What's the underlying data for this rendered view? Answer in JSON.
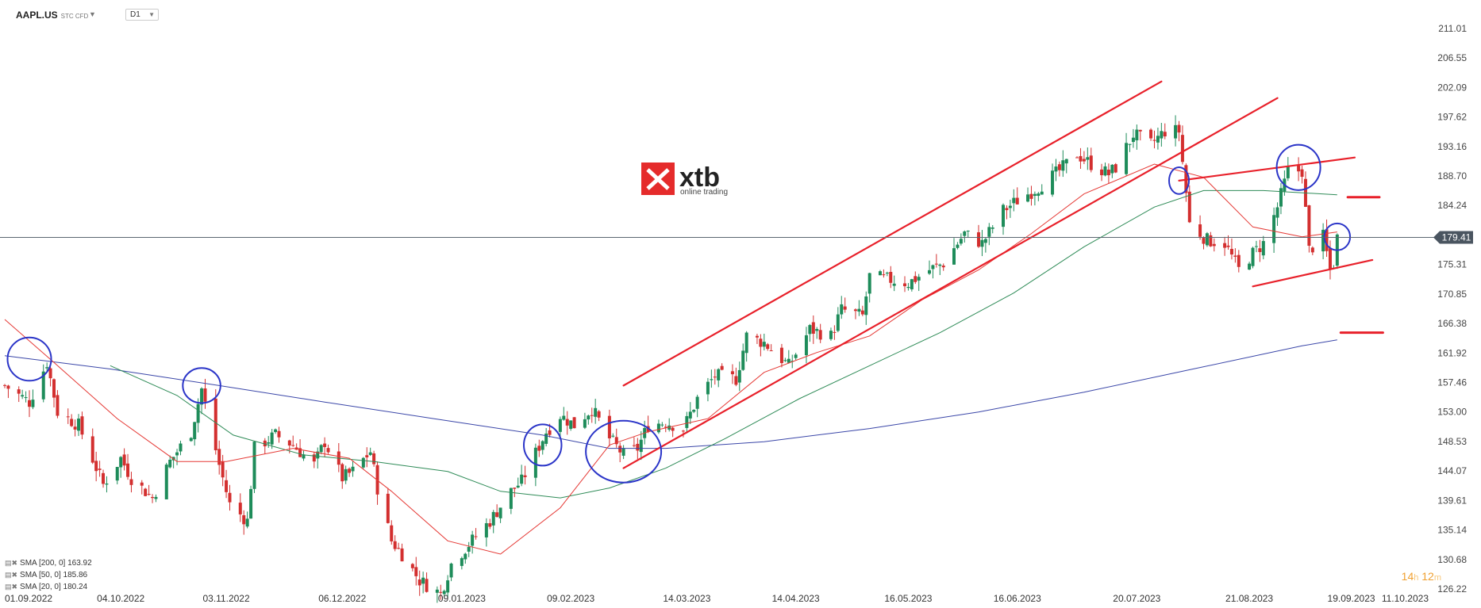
{
  "header": {
    "symbol": "AAPL.US",
    "symbol_type": "STC CFD",
    "timeframe": "D1"
  },
  "logo": {
    "name": "xtb",
    "tagline": "online trading"
  },
  "timer": {
    "hours": "14",
    "h_unit": "h",
    "minutes": "12",
    "m_unit": "m"
  },
  "indicators": [
    {
      "label": "SMA [200,  0]  163.92",
      "color": "#3a46a8"
    },
    {
      "label": "SMA [50,  0]  185.86",
      "color": "#2e8b57"
    },
    {
      "label": "SMA [20,  0]  180.24",
      "color": "#e53935"
    }
  ],
  "colors": {
    "up": "#1e8c5a",
    "down": "#d32f2f",
    "sma200": "#3a46a8",
    "sma50": "#2e8b57",
    "sma20": "#e53935",
    "annotation_line": "#e8202a",
    "annotation_circle": "#2b35c8",
    "price_tag": "#4a5560"
  },
  "chart_data": {
    "type": "candlestick",
    "ylim": [
      126.22,
      212.5
    ],
    "y_ticks": [
      211.01,
      206.55,
      202.09,
      197.62,
      193.16,
      188.7,
      184.24,
      179.78,
      175.31,
      170.85,
      166.38,
      161.92,
      157.46,
      153.0,
      148.53,
      144.07,
      139.61,
      135.14,
      130.68,
      126.22
    ],
    "y_tick_labels": [
      "211.01",
      "206.55",
      "202.09",
      "197.62",
      "193.16",
      "188.70",
      "184.24",
      "",
      "175.31",
      "170.85",
      "166.38",
      "161.92",
      "157.46",
      "153.00",
      "148.53",
      "144.07",
      "139.61",
      "135.14",
      "130.68",
      "126.22"
    ],
    "x_range": [
      "2022-09-01",
      "2023-10-11"
    ],
    "x_ticks": [
      "01.09.2022",
      "04.10.2022",
      "03.11.2022",
      "06.12.2022",
      "09.01.2023",
      "09.02.2023",
      "14.03.2023",
      "14.04.2023",
      "16.05.2023",
      "16.06.2023",
      "20.07.2023",
      "21.08.2023",
      "19.09.2023",
      "11.10.2023"
    ],
    "current_price": 179.41,
    "price_path": [
      [
        "2022-09-01",
        157.0
      ],
      [
        "2022-09-08",
        154.5
      ],
      [
        "2022-09-13",
        160.5
      ],
      [
        "2022-09-16",
        153.0
      ],
      [
        "2022-09-22",
        151.0
      ],
      [
        "2022-09-29",
        142.0
      ],
      [
        "2022-10-04",
        146.0
      ],
      [
        "2022-10-07",
        143.0
      ],
      [
        "2022-10-13",
        140.0
      ],
      [
        "2022-10-18",
        145.5
      ],
      [
        "2022-10-24",
        150.0
      ],
      [
        "2022-10-27",
        156.5
      ],
      [
        "2022-11-01",
        145.0
      ],
      [
        "2022-11-04",
        139.0
      ],
      [
        "2022-11-09",
        136.5
      ],
      [
        "2022-11-11",
        147.5
      ],
      [
        "2022-11-17",
        149.5
      ],
      [
        "2022-11-22",
        148.0
      ],
      [
        "2022-11-28",
        145.0
      ],
      [
        "2022-12-01",
        148.5
      ],
      [
        "2022-12-06",
        143.0
      ],
      [
        "2022-12-09",
        144.0
      ],
      [
        "2022-12-14",
        147.0
      ],
      [
        "2022-12-16",
        141.5
      ],
      [
        "2022-12-20",
        133.5
      ],
      [
        "2022-12-23",
        131.5
      ],
      [
        "2022-12-28",
        127.5
      ],
      [
        "2023-01-03",
        125.5
      ],
      [
        "2023-01-06",
        130.0
      ],
      [
        "2023-01-11",
        133.0
      ],
      [
        "2023-01-17",
        136.5
      ],
      [
        "2023-01-23",
        141.0
      ],
      [
        "2023-01-26",
        142.5
      ],
      [
        "2023-02-02",
        150.0
      ],
      [
        "2023-02-06",
        152.5
      ],
      [
        "2023-02-10",
        151.0
      ],
      [
        "2023-02-15",
        153.5
      ],
      [
        "2023-02-20",
        149.0
      ],
      [
        "2023-02-24",
        146.5
      ],
      [
        "2023-02-28",
        147.5
      ],
      [
        "2023-03-03",
        151.0
      ],
      [
        "2023-03-08",
        151.5
      ],
      [
        "2023-03-13",
        150.5
      ],
      [
        "2023-03-17",
        155.0
      ],
      [
        "2023-03-22",
        158.5
      ],
      [
        "2023-03-28",
        158.0
      ],
      [
        "2023-03-31",
        164.5
      ],
      [
        "2023-04-05",
        163.5
      ],
      [
        "2023-04-12",
        160.0
      ],
      [
        "2023-04-18",
        165.5
      ],
      [
        "2023-04-24",
        164.5
      ],
      [
        "2023-04-27",
        168.5
      ],
      [
        "2023-05-03",
        167.5
      ],
      [
        "2023-05-05",
        173.5
      ],
      [
        "2023-05-11",
        173.0
      ],
      [
        "2023-05-16",
        172.5
      ],
      [
        "2023-05-22",
        174.5
      ],
      [
        "2023-05-26",
        175.5
      ],
      [
        "2023-06-01",
        180.0
      ],
      [
        "2023-06-06",
        178.5
      ],
      [
        "2023-06-12",
        183.5
      ],
      [
        "2023-06-16",
        185.0
      ],
      [
        "2023-06-22",
        187.0
      ],
      [
        "2023-06-28",
        189.5
      ],
      [
        "2023-07-03",
        192.0
      ],
      [
        "2023-07-07",
        190.5
      ],
      [
        "2023-07-12",
        189.0
      ],
      [
        "2023-07-14",
        190.0
      ],
      [
        "2023-07-19",
        195.0
      ],
      [
        "2023-07-24",
        193.5
      ],
      [
        "2023-07-28",
        195.5
      ],
      [
        "2023-08-01",
        195.5
      ],
      [
        "2023-08-04",
        181.5
      ],
      [
        "2023-08-09",
        179.0
      ],
      [
        "2023-08-14",
        178.5
      ],
      [
        "2023-08-18",
        174.5
      ],
      [
        "2023-08-22",
        177.0
      ],
      [
        "2023-08-25",
        178.5
      ],
      [
        "2023-08-29",
        184.0
      ],
      [
        "2023-09-01",
        189.5
      ],
      [
        "2023-09-05",
        189.5
      ],
      [
        "2023-09-07",
        177.5
      ],
      [
        "2023-09-11",
        179.5
      ],
      [
        "2023-09-13",
        174.5
      ],
      [
        "2023-09-14",
        175.5
      ],
      [
        "2023-09-15",
        179.41
      ]
    ],
    "sma20_path": [
      [
        "2022-09-01",
        167.0
      ],
      [
        "2022-09-15",
        160.5
      ],
      [
        "2022-10-03",
        152.0
      ],
      [
        "2022-10-20",
        145.5
      ],
      [
        "2022-11-03",
        145.5
      ],
      [
        "2022-11-22",
        147.5
      ],
      [
        "2022-12-08",
        146.0
      ],
      [
        "2022-12-20",
        141.0
      ],
      [
        "2023-01-05",
        133.5
      ],
      [
        "2023-01-20",
        131.5
      ],
      [
        "2023-02-06",
        138.5
      ],
      [
        "2023-02-20",
        148.0
      ],
      [
        "2023-03-03",
        150.0
      ],
      [
        "2023-03-20",
        152.0
      ],
      [
        "2023-04-05",
        159.0
      ],
      [
        "2023-04-20",
        162.0
      ],
      [
        "2023-05-05",
        164.5
      ],
      [
        "2023-05-20",
        170.0
      ],
      [
        "2023-06-05",
        174.5
      ],
      [
        "2023-06-20",
        180.0
      ],
      [
        "2023-07-05",
        186.0
      ],
      [
        "2023-07-25",
        190.5
      ],
      [
        "2023-08-08",
        188.5
      ],
      [
        "2023-08-22",
        181.0
      ],
      [
        "2023-09-05",
        179.5
      ],
      [
        "2023-09-15",
        180.24
      ]
    ],
    "sma50_path": [
      [
        "2022-10-01",
        160.0
      ],
      [
        "2022-10-20",
        155.5
      ],
      [
        "2022-11-05",
        149.5
      ],
      [
        "2022-11-25",
        146.5
      ],
      [
        "2022-12-15",
        145.5
      ],
      [
        "2023-01-05",
        144.0
      ],
      [
        "2023-01-20",
        141.0
      ],
      [
        "2023-02-06",
        140.0
      ],
      [
        "2023-02-20",
        141.5
      ],
      [
        "2023-03-08",
        144.5
      ],
      [
        "2023-03-25",
        149.0
      ],
      [
        "2023-04-15",
        155.0
      ],
      [
        "2023-05-05",
        160.0
      ],
      [
        "2023-05-25",
        165.0
      ],
      [
        "2023-06-15",
        171.0
      ],
      [
        "2023-07-05",
        178.0
      ],
      [
        "2023-07-25",
        184.0
      ],
      [
        "2023-08-08",
        186.5
      ],
      [
        "2023-08-25",
        186.5
      ],
      [
        "2023-09-15",
        185.86
      ]
    ],
    "sma200_path": [
      [
        "2022-09-01",
        161.5
      ],
      [
        "2022-10-01",
        159.5
      ],
      [
        "2022-11-01",
        157.0
      ],
      [
        "2022-12-01",
        154.5
      ],
      [
        "2023-01-01",
        152.0
      ],
      [
        "2023-02-01",
        149.5
      ],
      [
        "2023-02-20",
        147.5
      ],
      [
        "2023-03-08",
        147.5
      ],
      [
        "2023-04-05",
        148.5
      ],
      [
        "2023-05-05",
        150.5
      ],
      [
        "2023-06-05",
        153.0
      ],
      [
        "2023-07-05",
        156.0
      ],
      [
        "2023-08-05",
        159.5
      ],
      [
        "2023-09-05",
        163.0
      ],
      [
        "2023-09-15",
        163.92
      ]
    ],
    "annotations": {
      "channel_upper": [
        [
          "2023-02-24",
          157.0
        ],
        [
          "2023-07-27",
          203.0
        ]
      ],
      "channel_lower": [
        [
          "2023-02-24",
          144.5
        ],
        [
          "2023-08-29",
          200.5
        ]
      ],
      "wedge_upper": [
        [
          "2023-08-01",
          188.0
        ],
        [
          "2023-09-20",
          191.5
        ]
      ],
      "wedge_lower": [
        [
          "2023-08-22",
          172.0
        ],
        [
          "2023-09-25",
          176.0
        ]
      ],
      "level_upper": [
        [
          "2023-09-18",
          185.5
        ],
        [
          "2023-09-27",
          185.5
        ]
      ],
      "level_lower": [
        [
          "2023-09-16",
          165.0
        ],
        [
          "2023-09-28",
          165.0
        ]
      ],
      "circles": [
        [
          [
            "2022-09-08",
            161.0
          ],
          [
            22,
            21
          ]
        ],
        [
          [
            "2022-10-27",
            157.0
          ],
          [
            19,
            17
          ]
        ],
        [
          [
            "2023-02-01",
            148.0
          ],
          [
            19,
            20
          ]
        ],
        [
          [
            "2023-02-24",
            147.0
          ],
          [
            38,
            30
          ]
        ],
        [
          [
            "2023-08-01",
            188.0
          ],
          [
            10,
            13
          ]
        ],
        [
          [
            "2023-09-04",
            190.0
          ],
          [
            22,
            22
          ]
        ],
        [
          [
            "2023-09-15",
            179.5
          ],
          [
            13,
            13
          ]
        ]
      ]
    }
  }
}
